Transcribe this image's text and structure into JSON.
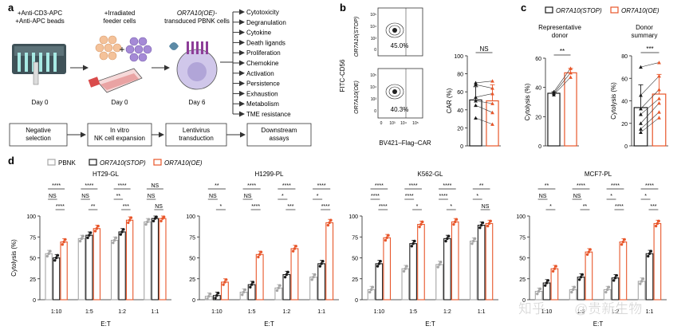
{
  "panel_a": {
    "label": "a",
    "steps": [
      {
        "top": [
          "+Anti-CD3-APC",
          "+Anti-APC beads"
        ],
        "day": "Day 0",
        "box": [
          "Negative",
          "selection"
        ]
      },
      {
        "top": [
          "+Irradiated",
          "feeder cells"
        ],
        "day": "Day 0",
        "box": [
          "In vitro",
          "NK cell expansion"
        ]
      },
      {
        "top": [
          "OR7A10(OE)-",
          "transduced PBNK cells"
        ],
        "day": "Day 6",
        "box": [
          "Lentivirus",
          "transduction"
        ]
      }
    ],
    "assays": [
      "Cytotoxicity",
      "Degranulation",
      "Cytokine",
      "Death ligands",
      "Proliferation",
      "Chemokine",
      "Activation",
      "Persistence",
      "Exhaustion",
      "Metabolism",
      "TME resistance"
    ],
    "assays_box": [
      "Downstream",
      "assays"
    ],
    "plus": "+"
  },
  "panel_b": {
    "label": "b",
    "flow": {
      "ylabel": "FITC-CD56",
      "xlabel": "BV421–Flag–CAR",
      "rows": [
        {
          "name": "OR7A10(STOP)",
          "pct": "45.0%"
        },
        {
          "name": "OR7A10(OE)",
          "pct": "40.3%"
        }
      ],
      "ticks": [
        "10⁵",
        "10⁴",
        "10³",
        "0",
        "10³",
        "10⁴",
        "10⁵"
      ]
    },
    "chart": {
      "type": "bar",
      "ylabel": "CAR (%)",
      "ylim": [
        0,
        100
      ],
      "yticks": [
        0,
        20,
        40,
        60,
        80,
        100
      ],
      "sig": "NS",
      "bars": [
        {
          "group": "OR7A10(STOP)",
          "mean": 51,
          "points": [
            70,
            68,
            54,
            50,
            45,
            31
          ]
        },
        {
          "group": "OR7A10(OE)",
          "mean": 50,
          "points": [
            72,
            64,
            58,
            47,
            37,
            24
          ]
        }
      ]
    }
  },
  "panel_c": {
    "label": "c",
    "legend": [
      "OR7A10(STOP)",
      "OR7A10(OE)"
    ],
    "charts": [
      {
        "type": "bar",
        "title": [
          "Representative",
          "donor"
        ],
        "ylabel": "Cytolysis (%)",
        "ylim": [
          0,
          60
        ],
        "yticks": [
          0,
          20,
          40,
          60
        ],
        "sig": "**",
        "bars": [
          {
            "group": "OR7A10(STOP)",
            "mean": 36,
            "points": [
              35,
              36,
              37
            ]
          },
          {
            "group": "OR7A10(OE)",
            "mean": 50,
            "points": [
              47,
              50,
              53
            ]
          }
        ]
      },
      {
        "type": "bar",
        "title": [
          "Donor",
          "summary"
        ],
        "ylabel": "Cytolysis (%)",
        "ylim": [
          0,
          80
        ],
        "yticks": [
          0,
          20,
          40,
          60,
          80
        ],
        "sig": "***",
        "bars": [
          {
            "group": "OR7A10(STOP)",
            "mean": 34,
            "points": [
              70,
              45,
              33,
              28,
              20,
              15,
              12
            ]
          },
          {
            "group": "OR7A10(OE)",
            "mean": 46,
            "points": [
              74,
              62,
              50,
              42,
              38,
              30,
              25
            ]
          }
        ]
      }
    ]
  },
  "panel_d": {
    "label": "d",
    "legend": [
      "PBNK",
      "OR7A10(STOP)",
      "OR7A10(OE)"
    ],
    "xlabel": "E:T",
    "ylabel": "Cytolysis (%)",
    "categories": [
      "1:10",
      "1:5",
      "1:2",
      "1:1"
    ],
    "yticks": [
      0,
      25,
      50,
      75,
      100
    ],
    "charts": [
      {
        "title": "HT29-GL",
        "series": [
          {
            "name": "PBNK",
            "values": [
              55,
              73,
              71,
              93
            ]
          },
          {
            "name": "OR7A10(STOP)",
            "values": [
              50,
              77,
              81,
              97
            ]
          },
          {
            "name": "OR7A10(OE)",
            "values": [
              69,
              85,
              95,
              97
            ]
          }
        ],
        "sig": [
          [
            "****",
            "NS",
            "****"
          ],
          [
            "****",
            "NS",
            "**"
          ],
          [
            "****",
            "**",
            "***"
          ],
          [
            "NS",
            "NS",
            "NS"
          ]
        ]
      },
      {
        "title": "H1299-PL",
        "series": [
          {
            "name": "PBNK",
            "values": [
              4,
              9,
              14,
              27
            ]
          },
          {
            "name": "OR7A10(STOP)",
            "values": [
              5,
              18,
              30,
              43
            ]
          },
          {
            "name": "OR7A10(OE)",
            "values": [
              21,
              54,
              61,
              92
            ]
          }
        ],
        "sig": [
          [
            "**",
            "NS",
            "*"
          ],
          [
            "****",
            "NS",
            "****"
          ],
          [
            "****",
            "*",
            "***"
          ],
          [
            "****",
            "*",
            "****"
          ]
        ]
      },
      {
        "title": "K562-GL",
        "series": [
          {
            "name": "PBNK",
            "values": [
              12,
              37,
              42,
              70
            ]
          },
          {
            "name": "OR7A10(STOP)",
            "values": [
              43,
              67,
              73,
              89
            ]
          },
          {
            "name": "OR7A10(OE)",
            "values": [
              74,
              90,
              93,
              91
            ]
          }
        ],
        "sig": [
          [
            "****",
            "****",
            "****"
          ],
          [
            "****",
            "****",
            "*"
          ],
          [
            "****",
            "****",
            "*"
          ],
          [
            "**",
            "*",
            "NS"
          ]
        ]
      },
      {
        "title": "MCF7-PL",
        "series": [
          {
            "name": "PBNK",
            "values": [
              10,
              12,
              12,
              22
            ]
          },
          {
            "name": "OR7A10(STOP)",
            "values": [
              20,
              27,
              26,
              55
            ]
          },
          {
            "name": "OR7A10(OE)",
            "values": [
              37,
              57,
              69,
              91
            ]
          }
        ],
        "sig": [
          [
            "**",
            "NS",
            "*"
          ],
          [
            "****",
            "NS",
            "**"
          ],
          [
            "****",
            "*",
            "****"
          ],
          [
            "****",
            "*",
            "***"
          ]
        ]
      }
    ]
  },
  "watermark": {
    "site": "知乎",
    "handle": "@贵新生物"
  },
  "colors": {
    "pbnk": "#a6a6a6",
    "stop": "#1a1a1a",
    "oe": "#e8562a",
    "arrow": "#333333"
  }
}
